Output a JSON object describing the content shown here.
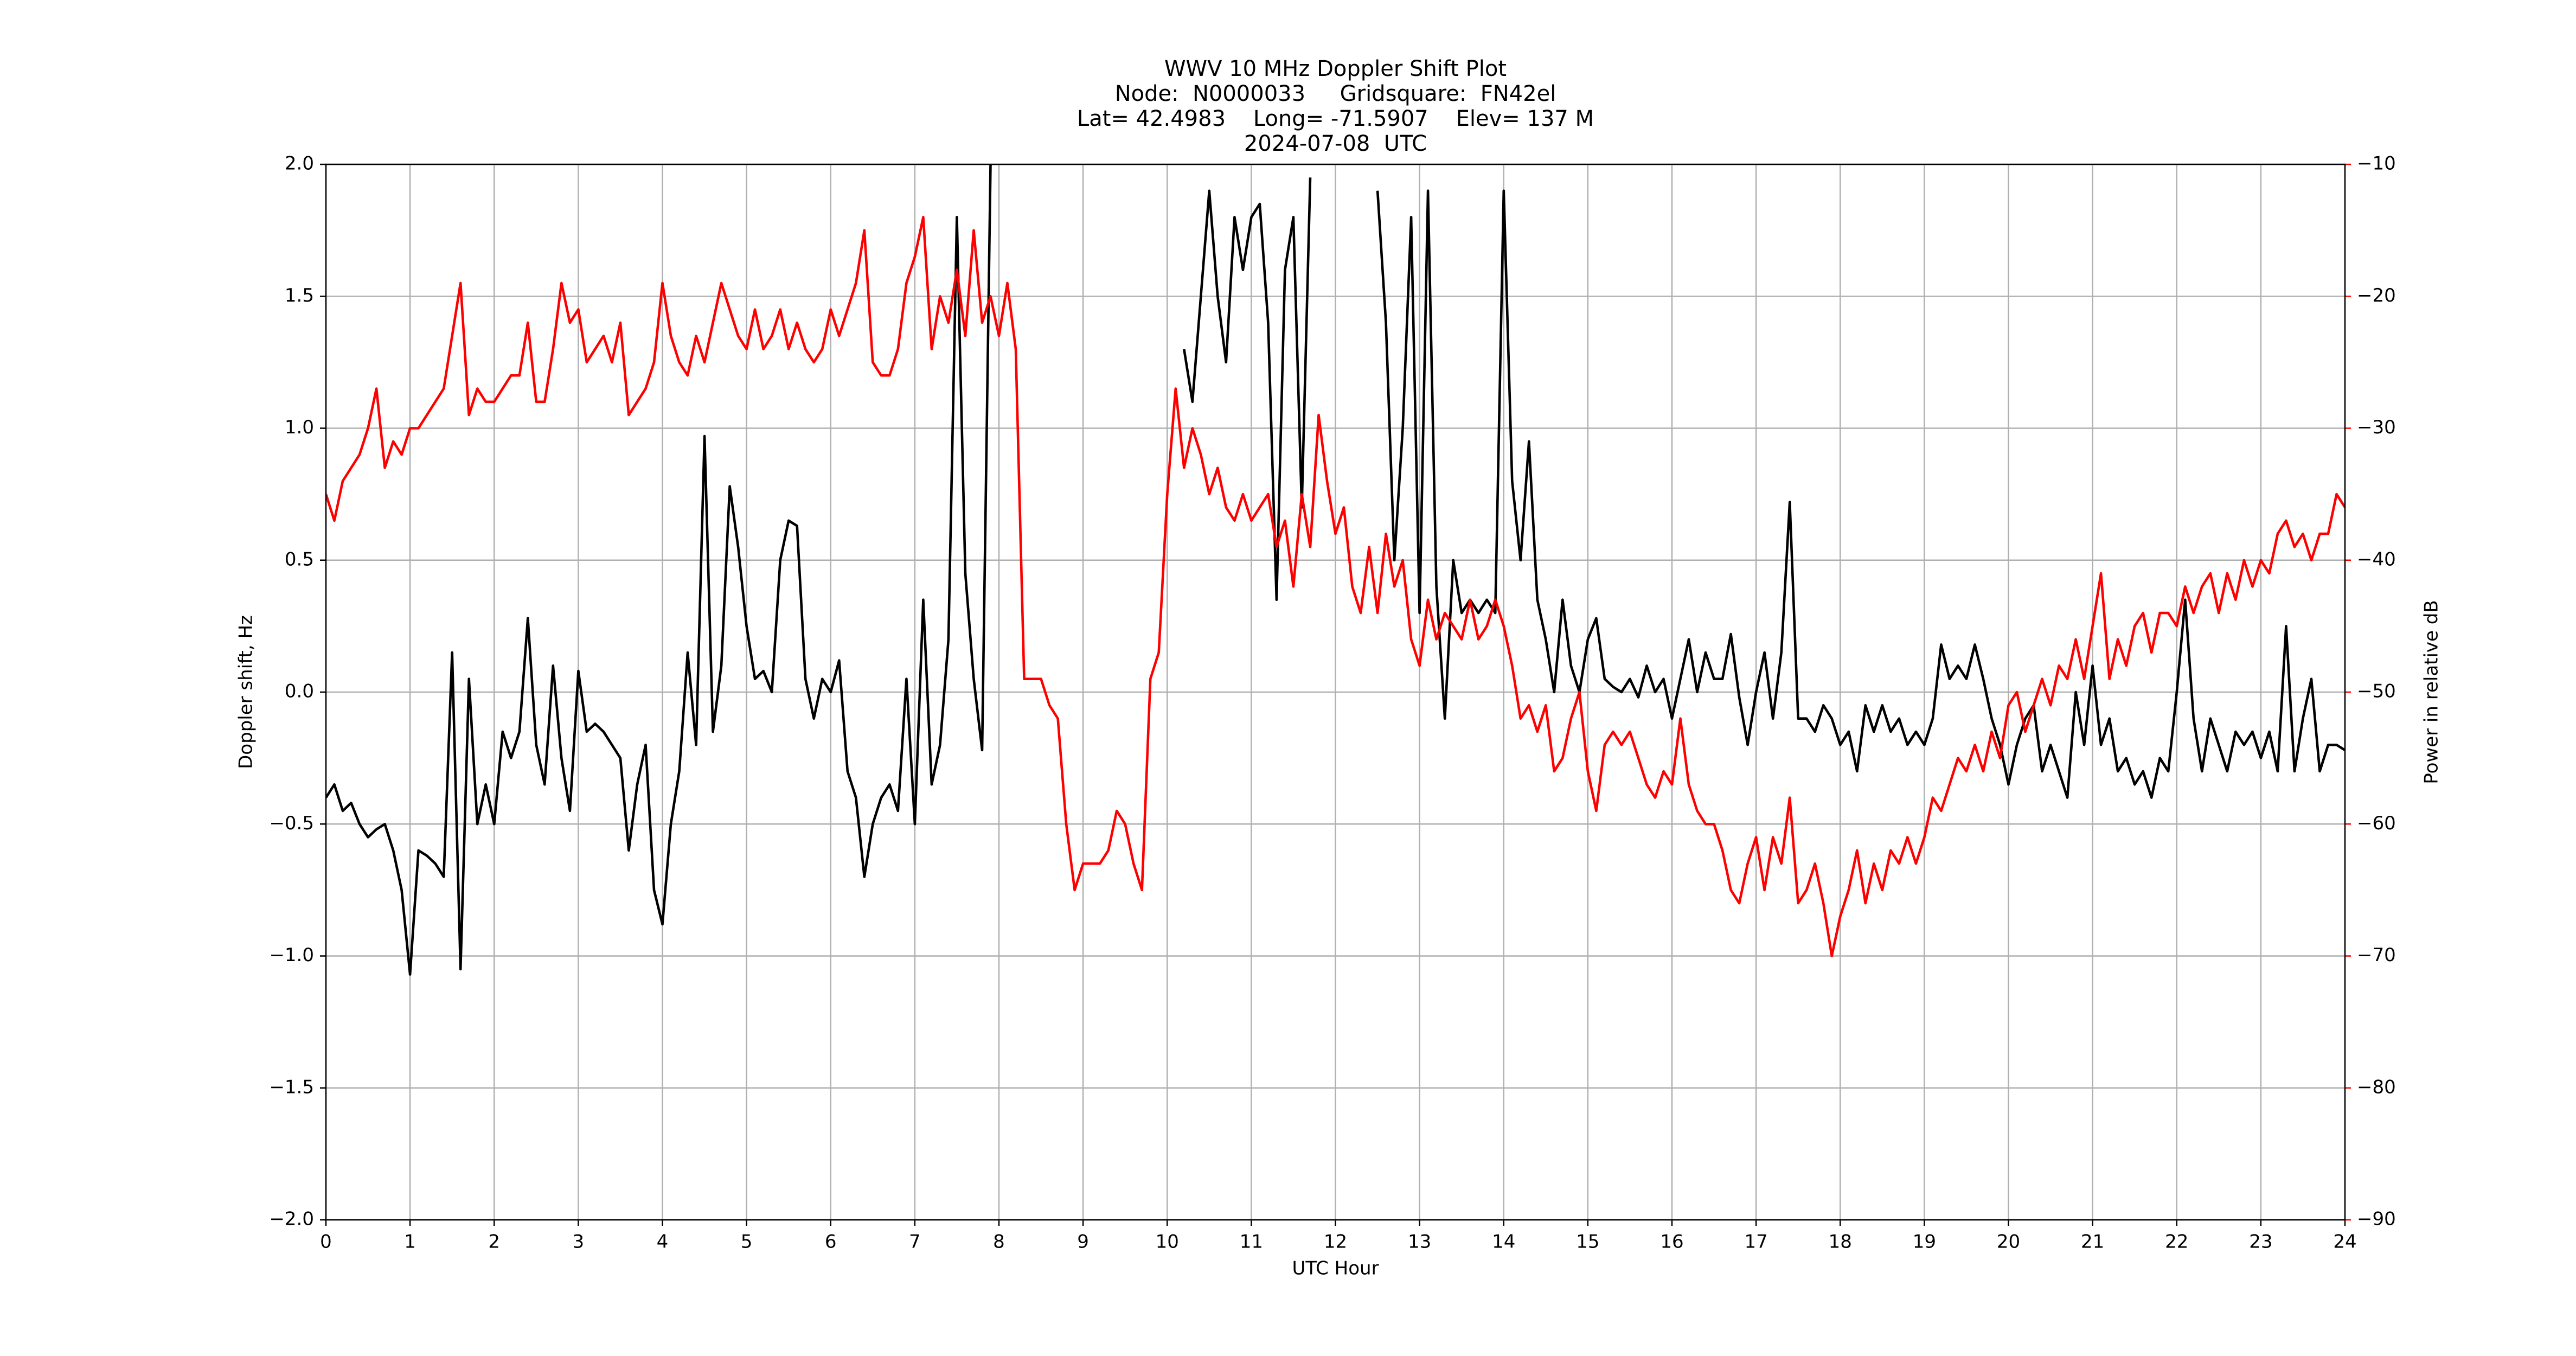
{
  "chart_data": {
    "type": "line",
    "title": [
      "WWV 10 MHz Doppler Shift Plot",
      "Node:  N0000033     Gridsquare:  FN42el",
      "Lat= 42.4983    Long= -71.5907    Elev= 137 M",
      "2024-07-08  UTC"
    ],
    "x_label": "UTC Hour",
    "y_label": "Doppler shift, Hz",
    "y2_label": "Power in relative dB",
    "x": [
      0,
      0.1,
      0.2,
      0.3,
      0.4,
      0.5,
      0.6,
      0.7,
      0.8,
      0.9,
      1,
      1.1,
      1.2,
      1.3,
      1.4,
      1.5,
      1.6,
      1.7,
      1.8,
      1.9,
      2,
      2.1,
      2.2,
      2.3,
      2.4,
      2.5,
      2.6,
      2.7,
      2.8,
      2.9,
      3,
      3.1,
      3.2,
      3.3,
      3.4,
      3.5,
      3.6,
      3.7,
      3.8,
      3.9,
      4,
      4.1,
      4.2,
      4.3,
      4.4,
      4.5,
      4.6,
      4.7,
      4.8,
      4.9,
      5,
      5.1,
      5.2,
      5.3,
      5.4,
      5.5,
      5.6,
      5.7,
      5.8,
      5.9,
      6,
      6.1,
      6.2,
      6.3,
      6.4,
      6.5,
      6.6,
      6.7,
      6.8,
      6.9,
      7,
      7.1,
      7.2,
      7.3,
      7.4,
      7.5,
      7.6,
      7.7,
      7.8,
      7.9,
      8,
      8.1,
      8.2,
      8.3,
      8.4,
      8.5,
      8.6,
      8.7,
      8.8,
      8.9,
      9,
      9.1,
      9.2,
      9.3,
      9.4,
      9.5,
      9.6,
      9.7,
      9.8,
      9.9,
      10,
      10.1,
      10.2,
      10.3,
      10.4,
      10.5,
      10.6,
      10.7,
      10.8,
      10.9,
      11,
      11.1,
      11.2,
      11.3,
      11.4,
      11.5,
      11.6,
      11.7,
      11.8,
      11.9,
      12,
      12.1,
      12.2,
      12.3,
      12.4,
      12.5,
      12.6,
      12.7,
      12.8,
      12.9,
      13,
      13.1,
      13.2,
      13.3,
      13.4,
      13.5,
      13.6,
      13.7,
      13.8,
      13.9,
      14,
      14.1,
      14.2,
      14.3,
      14.4,
      14.5,
      14.6,
      14.7,
      14.8,
      14.9,
      15,
      15.1,
      15.2,
      15.3,
      15.4,
      15.5,
      15.6,
      15.7,
      15.8,
      15.9,
      16,
      16.1,
      16.2,
      16.3,
      16.4,
      16.5,
      16.6,
      16.7,
      16.8,
      16.9,
      17,
      17.1,
      17.2,
      17.3,
      17.4,
      17.5,
      17.6,
      17.7,
      17.8,
      17.9,
      18,
      18.1,
      18.2,
      18.3,
      18.4,
      18.5,
      18.6,
      18.7,
      18.8,
      18.9,
      19,
      19.1,
      19.2,
      19.3,
      19.4,
      19.5,
      19.6,
      19.7,
      19.8,
      19.9,
      20,
      20.1,
      20.2,
      20.3,
      20.4,
      20.5,
      20.6,
      20.7,
      20.8,
      20.9,
      21,
      21.1,
      21.2,
      21.3,
      21.4,
      21.5,
      21.6,
      21.7,
      21.8,
      21.9,
      22,
      22.1,
      22.2,
      22.3,
      22.4,
      22.5,
      22.6,
      22.7,
      22.8,
      22.9,
      23,
      23.1,
      23.2,
      23.3,
      23.4,
      23.5,
      23.6,
      23.7,
      23.8,
      23.9,
      24
    ],
    "series": [
      {
        "name": "Doppler shift",
        "color": "#000000",
        "axis": "y",
        "values": [
          -0.4,
          -0.35,
          -0.45,
          -0.42,
          -0.5,
          -0.55,
          -0.52,
          -0.5,
          -0.6,
          -0.75,
          -1.07,
          -0.6,
          -0.62,
          -0.65,
          -0.7,
          0.15,
          -1.05,
          0.05,
          -0.5,
          -0.35,
          -0.5,
          -0.15,
          -0.25,
          -0.15,
          0.28,
          -0.2,
          -0.35,
          0.1,
          -0.25,
          -0.45,
          0.08,
          -0.15,
          -0.12,
          -0.15,
          -0.2,
          -0.25,
          -0.6,
          -0.35,
          -0.2,
          -0.75,
          -0.88,
          -0.5,
          -0.3,
          0.15,
          -0.2,
          0.97,
          -0.15,
          0.1,
          0.78,
          0.55,
          0.25,
          0.05,
          0.08,
          0,
          0.5,
          0.65,
          0.63,
          0.05,
          -0.1,
          0.05,
          0,
          0.12,
          -0.3,
          -0.4,
          -0.7,
          -0.5,
          -0.4,
          -0.35,
          -0.45,
          0.05,
          -0.5,
          0.35,
          -0.35,
          -0.2,
          0.2,
          1.8,
          0.45,
          0.05,
          -0.22,
          2,
          null,
          null,
          null,
          null,
          null,
          null,
          null,
          null,
          null,
          null,
          null,
          null,
          null,
          null,
          null,
          null,
          null,
          null,
          null,
          null,
          null,
          null,
          1.3,
          1.1,
          1.5,
          1.9,
          1.5,
          1.25,
          1.8,
          1.6,
          1.8,
          1.85,
          1.4,
          0.35,
          1.6,
          1.8,
          0.7,
          1.95,
          null,
          null,
          null,
          null,
          null,
          null,
          null,
          1.9,
          1.4,
          0.5,
          1,
          1.8,
          0.3,
          1.9,
          0.4,
          -0.1,
          0.5,
          0.3,
          0.35,
          0.3,
          0.35,
          0.3,
          1.9,
          0.8,
          0.5,
          0.95,
          0.35,
          0.2,
          0,
          0.35,
          0.1,
          0,
          0.2,
          0.28,
          0.05,
          0.02,
          0,
          0.05,
          -0.02,
          0.1,
          0,
          0.05,
          -0.1,
          0.05,
          0.2,
          0,
          0.15,
          0.05,
          0.05,
          0.22,
          -0.02,
          -0.2,
          0,
          0.15,
          -0.1,
          0.15,
          0.72,
          -0.1,
          -0.1,
          -0.15,
          -0.05,
          -0.1,
          -0.2,
          -0.15,
          -0.3,
          -0.05,
          -0.15,
          -0.05,
          -0.15,
          -0.1,
          -0.2,
          -0.15,
          -0.2,
          -0.1,
          0.18,
          0.05,
          0.1,
          0.05,
          0.18,
          0.05,
          -0.1,
          -0.2,
          -0.35,
          -0.2,
          -0.1,
          -0.05,
          -0.3,
          -0.2,
          -0.3,
          -0.4,
          0,
          -0.2,
          0.1,
          -0.2,
          -0.1,
          -0.3,
          -0.25,
          -0.35,
          -0.3,
          -0.4,
          -0.25,
          -0.3,
          0,
          0.35,
          -0.1,
          -0.3,
          -0.1,
          -0.2,
          -0.3,
          -0.15,
          -0.2,
          -0.15,
          -0.25,
          -0.15,
          -0.3,
          0.25,
          -0.3,
          -0.1,
          0.05,
          -0.3,
          -0.2,
          -0.2,
          -0.22
        ]
      },
      {
        "name": "Power",
        "color": "#ff0000",
        "axis": "y2",
        "values": [
          -35,
          -37,
          -34,
          -33,
          -32,
          -30,
          -27,
          -33,
          -31,
          -32,
          -30,
          -30,
          -29,
          -28,
          -27,
          -23,
          -19,
          -29,
          -27,
          -28,
          -28,
          -27,
          -26,
          -26,
          -22,
          -28,
          -28,
          -24,
          -19,
          -22,
          -21,
          -25,
          -24,
          -23,
          -25,
          -22,
          -29,
          -28,
          -27,
          -25,
          -19,
          -23,
          -25,
          -26,
          -23,
          -25,
          -22,
          -19,
          -21,
          -23,
          -24,
          -21,
          -24,
          -23,
          -21,
          -24,
          -22,
          -24,
          -25,
          -24,
          -21,
          -23,
          -21,
          -19,
          -15,
          -25,
          -26,
          -26,
          -24,
          -19,
          -17,
          -14,
          -24,
          -20,
          -22,
          -18,
          -23,
          -15,
          -22,
          -20,
          -23,
          -19,
          -24,
          -49,
          -49,
          -49,
          -51,
          -52,
          -60,
          -65,
          -63,
          -63,
          -63,
          -62,
          -59,
          -60,
          -63,
          -65,
          -49,
          -47,
          -35,
          -27,
          -33,
          -30,
          -32,
          -35,
          -33,
          -36,
          -37,
          -35,
          -37,
          -36,
          -35,
          -39,
          -37,
          -42,
          -35,
          -39,
          -29,
          -34,
          -38,
          -36,
          -42,
          -44,
          -39,
          -44,
          -38,
          -42,
          -40,
          -46,
          -48,
          -43,
          -46,
          -44,
          -45,
          -46,
          -43,
          -46,
          -45,
          -43,
          -45,
          -48,
          -52,
          -51,
          -53,
          -51,
          -56,
          -55,
          -52,
          -50,
          -56,
          -59,
          -54,
          -53,
          -54,
          -53,
          -55,
          -57,
          -58,
          -56,
          -57,
          -52,
          -57,
          -59,
          -60,
          -60,
          -62,
          -65,
          -66,
          -63,
          -61,
          -65,
          -61,
          -63,
          -58,
          -66,
          -65,
          -63,
          -66,
          -70,
          -67,
          -65,
          -62,
          -66,
          -63,
          -65,
          -62,
          -63,
          -61,
          -63,
          -61,
          -58,
          -59,
          -57,
          -55,
          -56,
          -54,
          -56,
          -53,
          -55,
          -51,
          -50,
          -53,
          -51,
          -49,
          -51,
          -48,
          -49,
          -46,
          -49,
          -45,
          -41,
          -49,
          -46,
          -48,
          -45,
          -44,
          -47,
          -44,
          -44,
          -45,
          -42,
          -44,
          -42,
          -41,
          -44,
          -41,
          -43,
          -40,
          -42,
          -40,
          -41,
          -38,
          -37,
          -39,
          -38,
          -40,
          -38,
          -38,
          -35,
          -36
        ]
      }
    ],
    "xlim": [
      0,
      24
    ],
    "xticks": [
      0,
      1,
      2,
      3,
      4,
      5,
      6,
      7,
      8,
      9,
      10,
      11,
      12,
      13,
      14,
      15,
      16,
      17,
      18,
      19,
      20,
      21,
      22,
      23,
      24
    ],
    "ylim": [
      -2,
      2
    ],
    "yticks": [
      {
        "value": -2,
        "label": "−2.0"
      },
      {
        "value": -1.5,
        "label": "−1.5"
      },
      {
        "value": -1,
        "label": "−1.0"
      },
      {
        "value": -0.5,
        "label": "−0.5"
      },
      {
        "value": 0,
        "label": "0.0"
      },
      0.5,
      {
        "value": 1,
        "label": "1.0"
      },
      1.5,
      {
        "value": 2,
        "label": "2.0"
      }
    ],
    "y2lim": [
      -90,
      -10
    ],
    "y2ticks": [
      {
        "value": -90,
        "label": "−90"
      },
      {
        "value": -80,
        "label": "−80"
      },
      {
        "value": -70,
        "label": "−70"
      },
      {
        "value": -60,
        "label": "−60"
      },
      {
        "value": -50,
        "label": "−50"
      },
      {
        "value": -40,
        "label": "−40"
      },
      {
        "value": -30,
        "label": "−30"
      },
      {
        "value": -20,
        "label": "−20"
      },
      {
        "value": -10,
        "label": "−10"
      }
    ],
    "grid": true
  }
}
